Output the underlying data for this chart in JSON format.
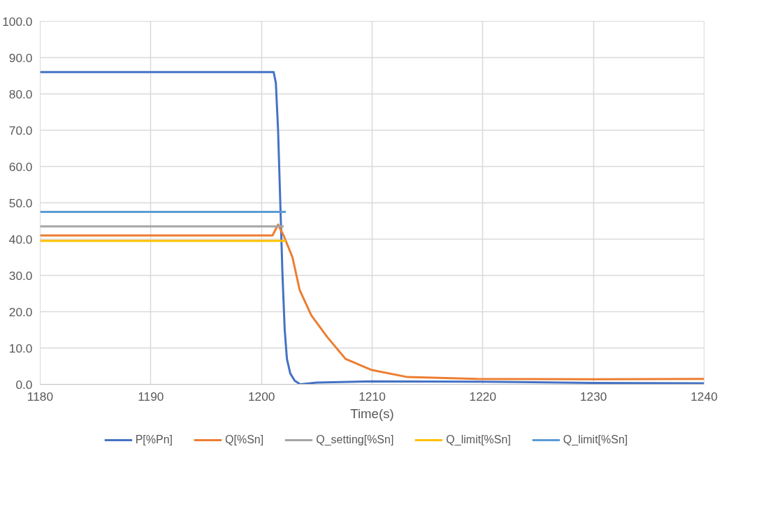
{
  "chart_data": {
    "type": "line",
    "xlabel": "Time(s)",
    "xlim": [
      1180,
      1240
    ],
    "xticks": [
      1180,
      1190,
      1200,
      1210,
      1220,
      1230,
      1240
    ],
    "ylim": [
      0,
      100
    ],
    "yticks": [
      {
        "value": 0,
        "label": "0.0"
      },
      {
        "value": 10,
        "label": "10.0"
      },
      {
        "value": 20,
        "label": "20.0"
      },
      {
        "value": 30,
        "label": "30.0"
      },
      {
        "value": 40,
        "label": "40.0"
      },
      {
        "value": 50,
        "label": "50.0"
      },
      {
        "value": 60,
        "label": "60.0"
      },
      {
        "value": 70,
        "label": "70.0"
      },
      {
        "value": 80,
        "label": "80.0"
      },
      {
        "value": 90,
        "label": "90.0"
      },
      {
        "value": 100,
        "label": "100.0"
      }
    ],
    "grid": true,
    "legend": "bottom",
    "marker": "none",
    "line_style": "solid",
    "series": [
      {
        "name": "P[%Pn]",
        "color": "#4472c4",
        "x": [
          1180,
          1190,
          1201.1,
          1201.3,
          1201.5,
          1201.7,
          1201.9,
          1202.1,
          1202.3,
          1202.6,
          1203.0,
          1203.5,
          1205,
          1210,
          1220,
          1230,
          1240
        ],
        "values": [
          86,
          86,
          86,
          83,
          70,
          50,
          30,
          15,
          7,
          3,
          1,
          0,
          0.5,
          0.8,
          0.7,
          0.4,
          0.3
        ]
      },
      {
        "name": "Q[%Sn]",
        "color": "#ed7d31",
        "x": [
          1180,
          1190,
          1201.0,
          1201.5,
          1202.0,
          1202.8,
          1203.45,
          1204.5,
          1205.95,
          1207.6,
          1209.9,
          1213.2,
          1219.5,
          1230,
          1240
        ],
        "values": [
          41,
          41,
          41,
          44,
          41,
          35,
          26,
          19,
          13,
          7,
          4,
          2,
          1.5,
          1.4,
          1.5
        ]
      },
      {
        "name": "Q_setting[%Sn]",
        "color": "#a5a5a5",
        "x": [
          1180,
          1202.0
        ],
        "values": [
          43.5,
          43.5
        ]
      },
      {
        "name": "Q_limit[%Sn]",
        "color": "#ffc000",
        "x": [
          1180,
          1202.2
        ],
        "values": [
          39.5,
          39.5
        ]
      },
      {
        "name": "Q_limit[%Sn]",
        "color": "#5b9bd5",
        "x": [
          1180,
          1202.2
        ],
        "values": [
          47.5,
          47.5
        ]
      }
    ]
  }
}
